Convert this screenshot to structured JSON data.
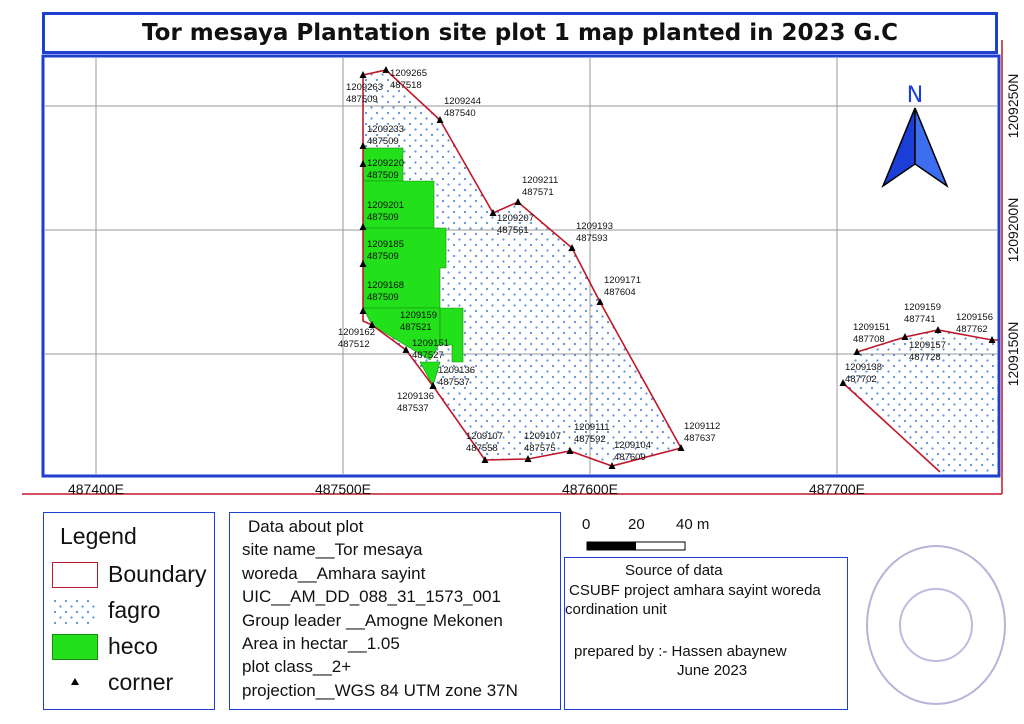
{
  "title": "Tor mesaya Plantation site plot 1 map planted in 2023 G.C",
  "colors": {
    "frame": "#1e3fd0",
    "boundary": "#c0182a",
    "heco": "#22e01a",
    "fagro_dot": "#5c8fd0",
    "grid": "#9a9a9a"
  },
  "north_arrow": {
    "label": "N"
  },
  "x_ticks": [
    "487400E",
    "487500E",
    "487600E",
    "487700E"
  ],
  "y_ticks": [
    "1209250N",
    "1209200N",
    "1209150N"
  ],
  "corners": [
    {
      "n": "1209265",
      "e": "487518"
    },
    {
      "n": "1209263",
      "e": "487509"
    },
    {
      "n": "1209244",
      "e": "487540"
    },
    {
      "n": "1209233",
      "e": "487509"
    },
    {
      "n": "1209220",
      "e": "487509"
    },
    {
      "n": "1209211",
      "e": "487571"
    },
    {
      "n": "1209201",
      "e": "487509"
    },
    {
      "n": "1209207",
      "e": "487561"
    },
    {
      "n": "1209193",
      "e": "487593"
    },
    {
      "n": "1209185",
      "e": "487509"
    },
    {
      "n": "1209171",
      "e": "487604"
    },
    {
      "n": "1209168",
      "e": "487509"
    },
    {
      "n": "1209159",
      "e": "487521"
    },
    {
      "n": "1209162",
      "e": "487512"
    },
    {
      "n": "1209151",
      "e": "487527"
    },
    {
      "n": "1209136",
      "e": "487537"
    },
    {
      "n": "1209136",
      "e": "487537"
    },
    {
      "n": "1209107",
      "e": "487558"
    },
    {
      "n": "1209107",
      "e": "487575"
    },
    {
      "n": "1209111",
      "e": "487592"
    },
    {
      "n": "1209112",
      "e": "487637"
    },
    {
      "n": "1209104",
      "e": "487609"
    },
    {
      "n": "1209159",
      "e": "487741"
    },
    {
      "n": "1209156",
      "e": "487762"
    },
    {
      "n": "1209151",
      "e": "487708"
    },
    {
      "n": "1209157",
      "e": "487728"
    },
    {
      "n": "1209138",
      "e": "487702"
    }
  ],
  "legend": {
    "title": "Legend",
    "items": [
      {
        "label": "Boundary",
        "type": "boundary"
      },
      {
        "label": "fagro",
        "type": "fagro"
      },
      {
        "label": "heco",
        "type": "heco"
      },
      {
        "label": "corner",
        "type": "corner"
      }
    ]
  },
  "plot_info": {
    "heading": "Data about plot",
    "lines": [
      "site name__Tor mesaya",
      "woreda__Amhara sayint",
      "UIC__AM_DD_088_31_1573_001",
      "Group leader __Amogne Mekonen",
      "Area in hectar__1.05",
      "plot class__2+",
      "projection__WGS 84 UTM zone 37N"
    ]
  },
  "scale_bar": {
    "labels": [
      "0",
      "20",
      "40 m"
    ]
  },
  "source": {
    "heading": "Source of data",
    "line1": "CSUBF project amhara sayint woreda",
    "line2": "cordination unit",
    "prepared": "prepared by :- Hassen abaynew",
    "date": "June 2023"
  }
}
